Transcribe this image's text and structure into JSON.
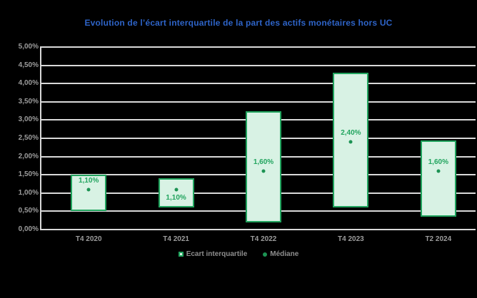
{
  "colors": {
    "bg": "#000000",
    "title": "#2e64c8",
    "grid": "#d9d9d9",
    "axis_text": "#9c9c9c",
    "legend_text": "#8e8e8e",
    "bar_fill": "#d8f2e4",
    "bar_border": "#21a45e",
    "dot": "#1c9353",
    "data_label": "#21a45e"
  },
  "chart_data": {
    "type": "bar",
    "subtype": "floating-range-bar-with-median-points",
    "title": "Evolution de l’écart interquartile de la part des actifs monétaires hors UC",
    "categories": [
      "T4 2020",
      "T4 2021",
      "T4 2022",
      "T4 2023",
      "T2 2024"
    ],
    "y_axis": {
      "min": 0,
      "max": 5,
      "tick_step": 0.5,
      "unit": "%",
      "tick_labels": [
        "0,00%",
        "0,50%",
        "1,00%",
        "1,50%",
        "2,00%",
        "2,50%",
        "3,00%",
        "3,50%",
        "4,00%",
        "4,50%",
        "5,00%"
      ]
    },
    "grid": true,
    "legend_position": "bottom",
    "series": [
      {
        "name": "Ecart interquartile",
        "type": "range_bar",
        "ranges": [
          {
            "category": "T4 2020",
            "low": 0.5,
            "high": 1.5
          },
          {
            "category": "T4 2021",
            "low": 0.6,
            "high": 1.4
          },
          {
            "category": "T4 2022",
            "low": 0.2,
            "high": 3.25
          },
          {
            "category": "T4 2023",
            "low": 0.6,
            "high": 4.3
          },
          {
            "category": "T2 2024",
            "low": 0.35,
            "high": 2.45
          }
        ]
      },
      {
        "name": "Médiane",
        "type": "point",
        "points": [
          {
            "category": "T4 2020",
            "value": 1.1,
            "label": "1,10%",
            "label_position": "above"
          },
          {
            "category": "T4 2021",
            "value": 1.1,
            "label": "1,10%",
            "label_position": "below"
          },
          {
            "category": "T4 2022",
            "value": 1.6,
            "label": "1,60%",
            "label_position": "above"
          },
          {
            "category": "T4 2023",
            "value": 2.4,
            "label": "2,40%",
            "label_position": "above"
          },
          {
            "category": "T2 2024",
            "value": 1.6,
            "label": "1,60%",
            "label_position": "above"
          }
        ]
      }
    ]
  }
}
